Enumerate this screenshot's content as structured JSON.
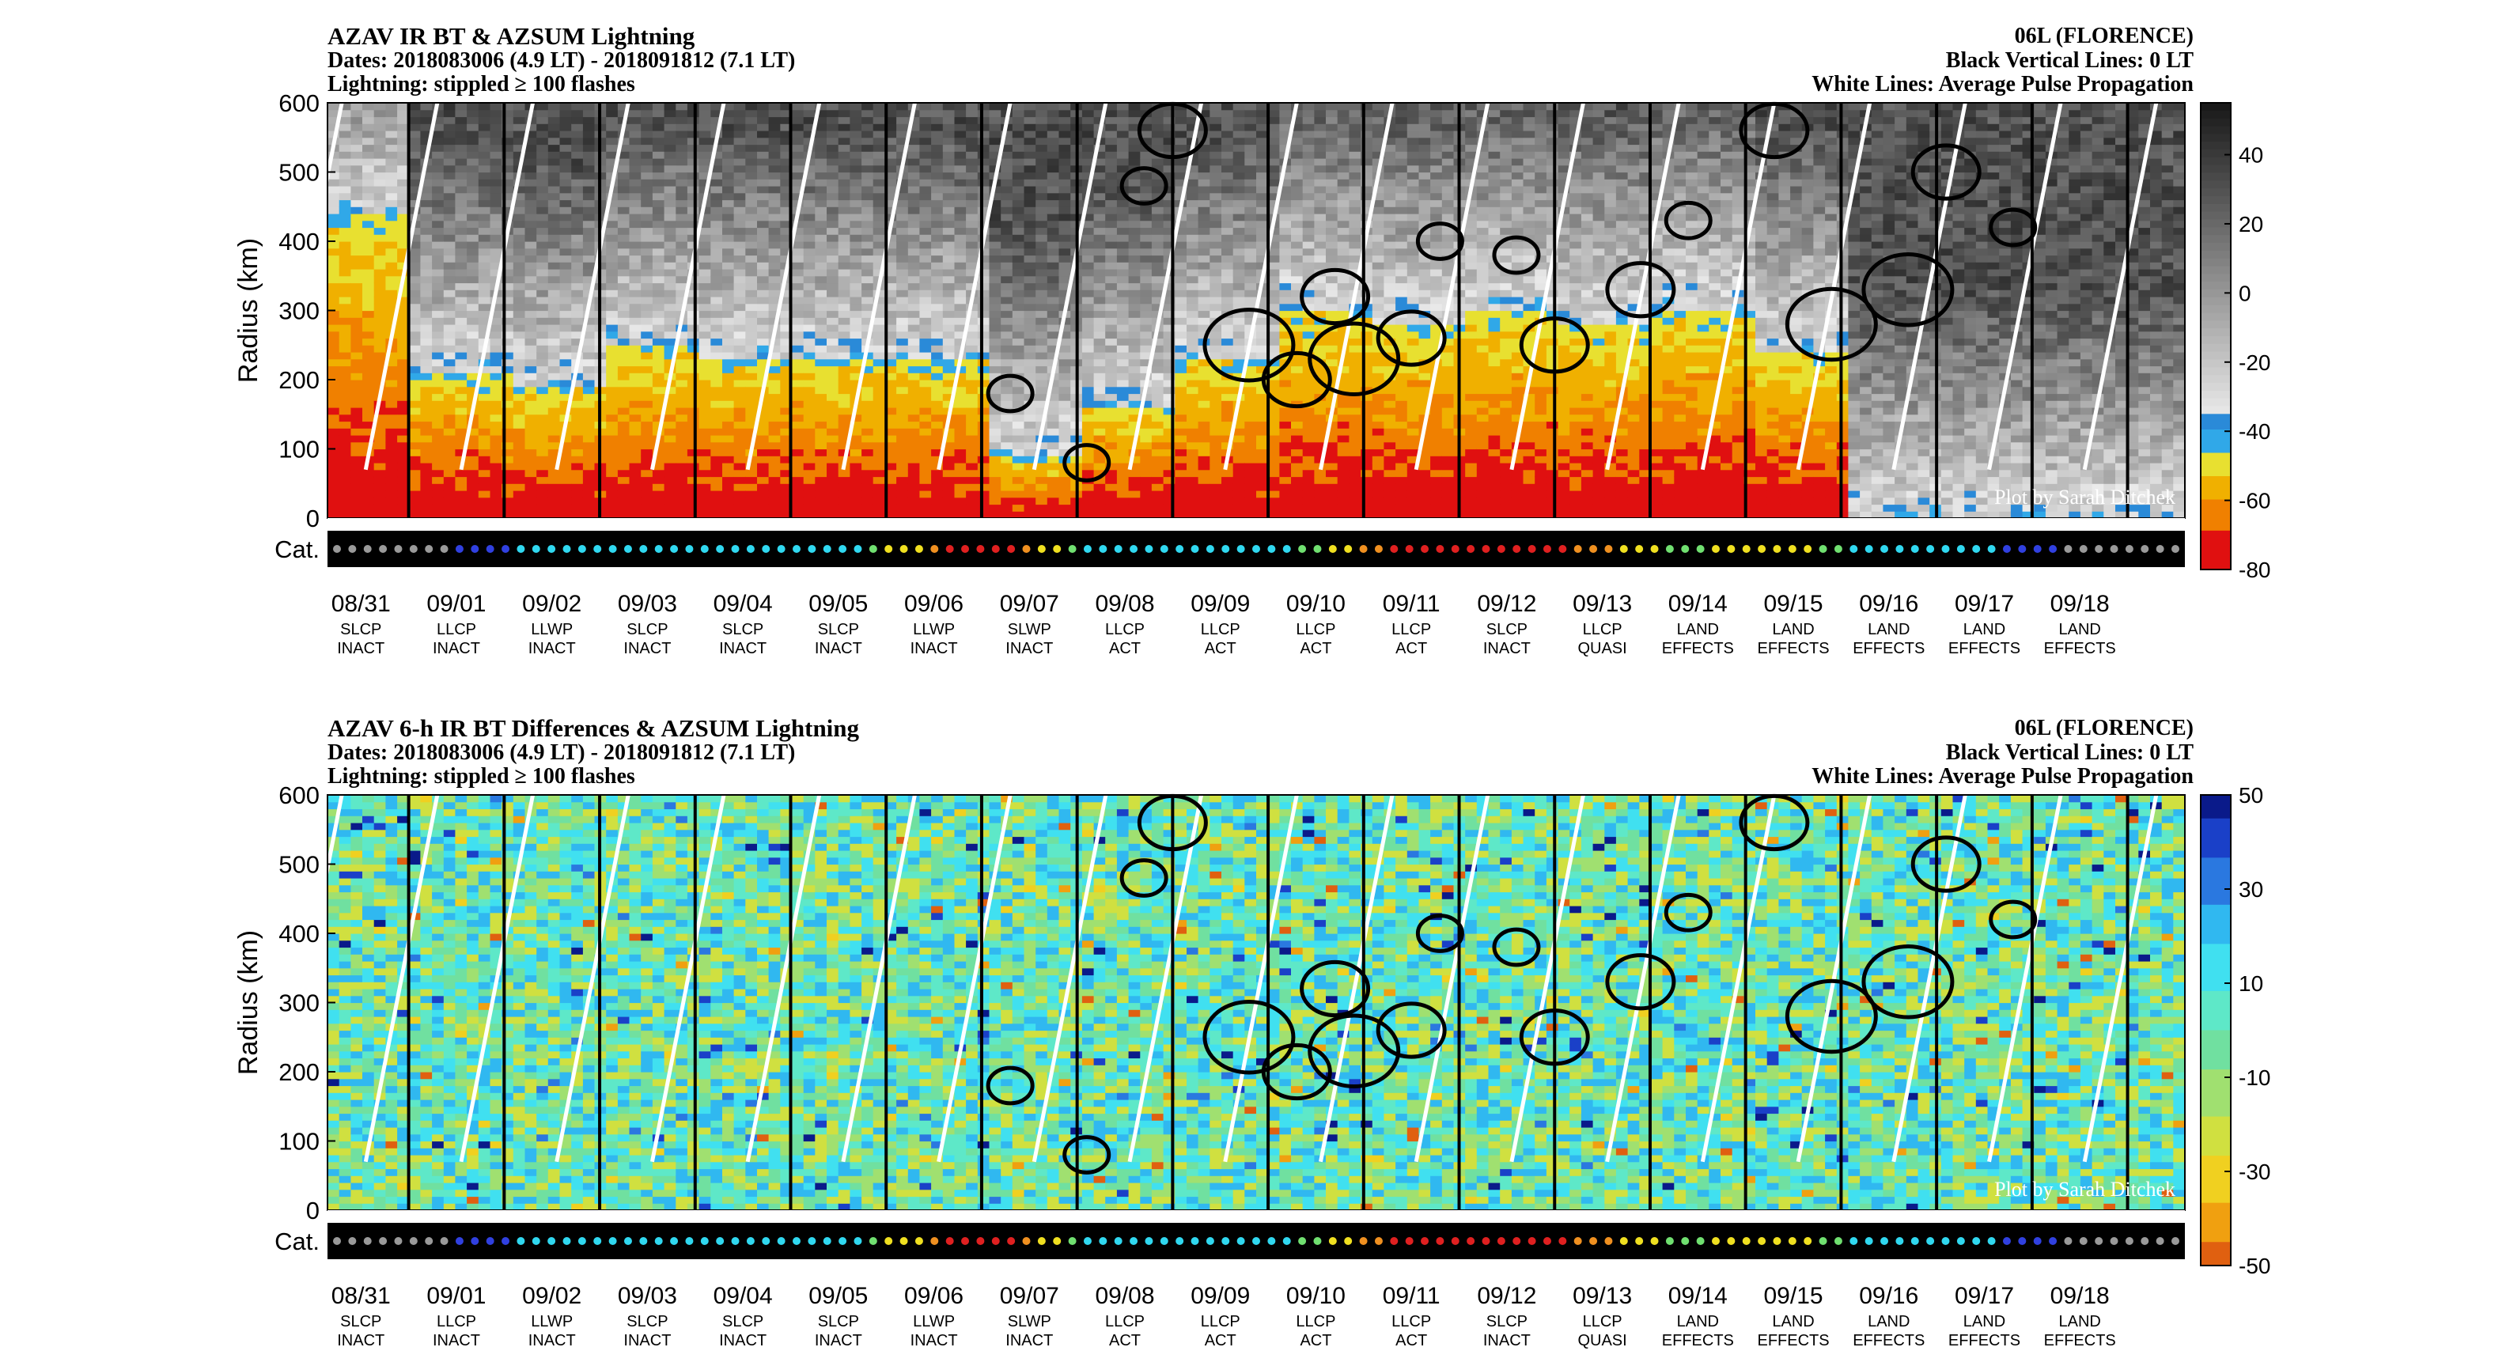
{
  "panels": [
    {
      "title": "AZAV IR BT & AZSUM Lightning",
      "dates": "Dates: 2018083006 (4.9 LT) - 2018091812 (7.1 LT)",
      "lightning_note": "Lightning: stippled ≥ 100 flashes",
      "storm": "06L (FLORENCE)",
      "vertical_lines_note": "Black Vertical Lines: 0 LT",
      "white_lines_note": "White Lines: Average Pulse Propagation",
      "ylabel": "Radius (km)",
      "yticks": [
        "600",
        "500",
        "400",
        "300",
        "200",
        "100",
        "0"
      ],
      "cat_label": "Cat.",
      "credit": "Plot by Sarah Ditchek",
      "colorbar_ticks": [
        "40",
        "20",
        "0",
        "-20",
        "-40",
        "-60",
        "-80"
      ]
    },
    {
      "title": "AZAV 6-h IR BT Differences & AZSUM Lightning",
      "dates": "Dates: 2018083006 (4.9 LT) - 2018091812 (7.1 LT)",
      "lightning_note": "Lightning: stippled ≥ 100 flashes",
      "storm": "06L (FLORENCE)",
      "vertical_lines_note": "Black Vertical Lines: 0 LT",
      "white_lines_note": "White Lines: Average Pulse Propagation",
      "ylabel": "Radius (km)",
      "yticks": [
        "600",
        "500",
        "400",
        "300",
        "200",
        "100",
        "0"
      ],
      "cat_label": "Cat.",
      "credit": "Plot by Sarah Ditchek",
      "colorbar_ticks": [
        "50",
        "30",
        "10",
        "-10",
        "-30",
        "-50"
      ]
    }
  ],
  "days": [
    {
      "date": "08/31",
      "cls": "SLCP",
      "state": "INACT"
    },
    {
      "date": "09/01",
      "cls": "LLCP",
      "state": "INACT"
    },
    {
      "date": "09/02",
      "cls": "LLWP",
      "state": "INACT"
    },
    {
      "date": "09/03",
      "cls": "SLCP",
      "state": "INACT"
    },
    {
      "date": "09/04",
      "cls": "SLCP",
      "state": "INACT"
    },
    {
      "date": "09/05",
      "cls": "SLCP",
      "state": "INACT"
    },
    {
      "date": "09/06",
      "cls": "LLWP",
      "state": "INACT"
    },
    {
      "date": "09/07",
      "cls": "SLWP",
      "state": "INACT"
    },
    {
      "date": "09/08",
      "cls": "LLCP",
      "state": "ACT"
    },
    {
      "date": "09/09",
      "cls": "LLCP",
      "state": "ACT"
    },
    {
      "date": "09/10",
      "cls": "LLCP",
      "state": "ACT"
    },
    {
      "date": "09/11",
      "cls": "LLCP",
      "state": "ACT"
    },
    {
      "date": "09/12",
      "cls": "SLCP",
      "state": "INACT"
    },
    {
      "date": "09/13",
      "cls": "LLCP",
      "state": "QUASI"
    },
    {
      "date": "09/14",
      "cls": "LAND",
      "state": "EFFECTS"
    },
    {
      "date": "09/15",
      "cls": "LAND",
      "state": "EFFECTS"
    },
    {
      "date": "09/16",
      "cls": "LAND",
      "state": "EFFECTS"
    },
    {
      "date": "09/17",
      "cls": "LAND",
      "state": "EFFECTS"
    },
    {
      "date": "09/18",
      "cls": "LAND",
      "state": "EFFECTS"
    }
  ],
  "chart_data": [
    {
      "type": "heatmap",
      "title": "AZAV IR BT & AZSUM Lightning",
      "ylabel": "Radius (km)",
      "ylim": [
        0,
        600
      ],
      "x_categories": [
        "08/31",
        "09/01",
        "09/02",
        "09/03",
        "09/04",
        "09/05",
        "09/06",
        "09/07",
        "09/08",
        "09/09",
        "09/10",
        "09/11",
        "09/12",
        "09/13",
        "09/14",
        "09/15",
        "09/16",
        "09/17",
        "09/18"
      ],
      "colorbar_range": [
        -80,
        55
      ],
      "colorbar_ticks": [
        40,
        20,
        0,
        -20,
        -40,
        -60,
        -80
      ],
      "cold_cloud_top_km_by_day": [
        440,
        210,
        190,
        250,
        230,
        230,
        230,
        90,
        160,
        230,
        300,
        280,
        300,
        280,
        300,
        240,
        0,
        0,
        0
      ],
      "lightning_stippled_threshold_flashes": 100
    },
    {
      "type": "heatmap",
      "title": "AZAV 6-h IR BT Differences & AZSUM Lightning",
      "ylabel": "Radius (km)",
      "ylim": [
        0,
        600
      ],
      "x_categories": [
        "08/31",
        "09/01",
        "09/02",
        "09/03",
        "09/04",
        "09/05",
        "09/06",
        "09/07",
        "09/08",
        "09/09",
        "09/10",
        "09/11",
        "09/12",
        "09/13",
        "09/14",
        "09/15",
        "09/16",
        "09/17",
        "09/18"
      ],
      "colorbar_range": [
        -50,
        50
      ],
      "colorbar_ticks": [
        50,
        30,
        10,
        -10,
        -30,
        -50
      ],
      "lightning_stippled_threshold_flashes": 100
    }
  ],
  "category_dots": [
    "gray",
    "gray",
    "gray",
    "gray",
    "gray",
    "gray",
    "gray",
    "gray",
    "blue",
    "blue",
    "blue",
    "blue",
    "cyan",
    "cyan",
    "cyan",
    "cyan",
    "cyan",
    "cyan",
    "cyan",
    "cyan",
    "cyan",
    "cyan",
    "cyan",
    "cyan",
    "cyan",
    "cyan",
    "cyan",
    "cyan",
    "cyan",
    "cyan",
    "cyan",
    "cyan",
    "cyan",
    "cyan",
    "cyan",
    "green",
    "yellow",
    "yellow",
    "yellow",
    "orange",
    "red",
    "red",
    "red",
    "red",
    "red",
    "orange",
    "yellow",
    "yellow",
    "green",
    "cyan",
    "cyan",
    "cyan",
    "cyan",
    "cyan",
    "cyan",
    "cyan",
    "cyan",
    "cyan",
    "cyan",
    "cyan",
    "cyan",
    "cyan",
    "cyan",
    "green",
    "green",
    "yellow",
    "yellow",
    "orange",
    "orange",
    "red",
    "red",
    "red",
    "red",
    "red",
    "red",
    "red",
    "red",
    "red",
    "red",
    "red",
    "red",
    "orange",
    "orange",
    "orange",
    "yellow",
    "yellow",
    "yellow",
    "green",
    "green",
    "green",
    "yellow",
    "yellow",
    "yellow",
    "yellow",
    "yellow",
    "yellow",
    "yellow",
    "green",
    "green",
    "cyan",
    "cyan",
    "cyan",
    "cyan",
    "cyan",
    "cyan",
    "cyan",
    "cyan",
    "cyan",
    "cyan",
    "blue",
    "blue",
    "blue",
    "blue",
    "gray",
    "gray",
    "gray",
    "gray",
    "gray",
    "gray",
    "gray",
    "gray"
  ]
}
